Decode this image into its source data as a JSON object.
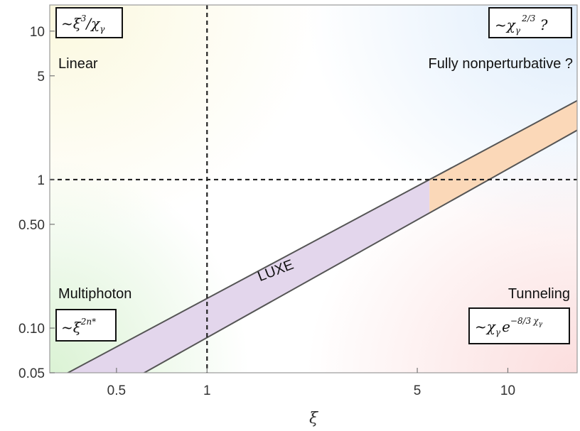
{
  "chart_data": {
    "type": "area",
    "xlabel": "ξ",
    "ylabel": "",
    "x_scale": "log",
    "y_scale": "log",
    "xlim": [
      0.3,
      17
    ],
    "ylim": [
      0.05,
      15
    ],
    "x_ticks": [
      {
        "value": 0.5,
        "label": "0.5"
      },
      {
        "value": 1,
        "label": "1"
      },
      {
        "value": 5,
        "label": "5"
      },
      {
        "value": 10,
        "label": "10"
      }
    ],
    "y_ticks": [
      {
        "value": 0.05,
        "label": "0.05"
      },
      {
        "value": 0.1,
        "label": "0.10"
      },
      {
        "value": 0.5,
        "label": "0.50"
      },
      {
        "value": 1,
        "label": "1"
      },
      {
        "value": 5,
        "label": "5"
      },
      {
        "value": 10,
        "label": "10"
      }
    ],
    "reference_lines": [
      {
        "axis": "x",
        "value": 1,
        "style": "dashed"
      },
      {
        "axis": "y",
        "value": 1,
        "style": "dashed"
      }
    ],
    "band": {
      "label": "LUXE",
      "upper_edge": [
        [
          0.3,
          0.043
        ],
        [
          17,
          3.4
        ]
      ],
      "lower_edge": [
        [
          0.3,
          0.022
        ],
        [
          17,
          2.15
        ]
      ],
      "colors": {
        "below_y1": "#e3d6ec",
        "above_y1": "#fbd8b8",
        "edge": "#555555"
      }
    },
    "regions": [
      {
        "name": "Linear",
        "formula": "~ξ3/χγ",
        "corner": "top-left",
        "tint": "#fbf8dc"
      },
      {
        "name": "Fully nonperturbative ?",
        "formula": "~χγ2/3 ?",
        "corner": "top-right",
        "tint": "#dcebfb"
      },
      {
        "name": "Multiphoton",
        "formula": "~ξ2n*",
        "corner": "bottom-left",
        "tint": "#d9f2d2"
      },
      {
        "name": "Tunneling",
        "formula": "~χγe−8/3χγ",
        "corner": "bottom-right",
        "tint": "#fbdcdc"
      }
    ]
  },
  "labels": {
    "linear": "Linear",
    "fully": "Fully nonperturbative ?",
    "multiphoton": "Multiphoton",
    "tunneling": "Tunneling",
    "luxe": "LUXE",
    "xlabel": "ξ"
  },
  "formulas": {
    "linear": {
      "a": "~ξ",
      "a_sup": "3",
      "b": "/χ",
      "b_sub": "γ"
    },
    "fully": {
      "a": "~χ",
      "a_sub": "γ",
      "a_sup": "2/3",
      "b": " ?"
    },
    "multiphoton": {
      "a": "~ξ",
      "a_sup": "2n*"
    },
    "tunneling": {
      "a": "~χ",
      "a_sub": "γ",
      "b": "e",
      "b_sup": "−8/3",
      "c": "χ",
      "c_sub": "γ"
    }
  }
}
